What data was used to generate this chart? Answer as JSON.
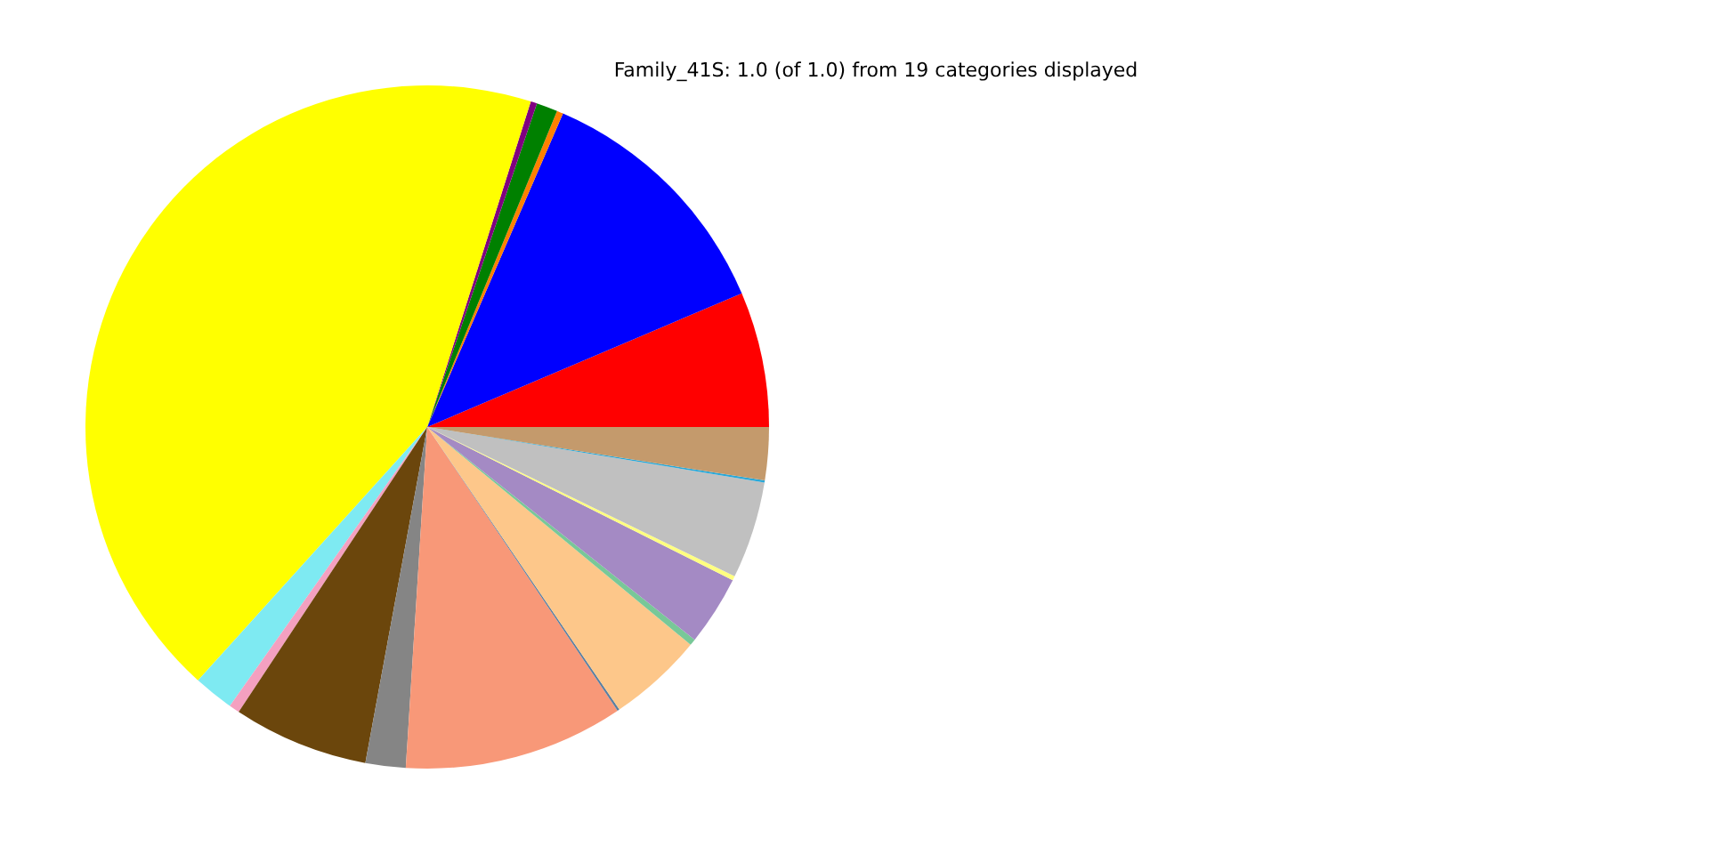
{
  "chart_data": {
    "type": "pie",
    "title": "Family_41S: 1.0 (of 1.0) from 19 categories displayed",
    "categories": [
      null,
      null,
      null,
      null,
      null,
      null,
      null,
      null,
      null,
      null,
      null,
      null,
      null,
      null,
      null,
      null,
      null,
      null,
      null
    ],
    "values": [
      6.4,
      12.1,
      0.3,
      1.0,
      0.3,
      43.2,
      1.9,
      0.5,
      6.4,
      1.9,
      10.4,
      0.1,
      4.5,
      0.3,
      3.3,
      0.2,
      4.6,
      0.1,
      2.5
    ],
    "colors": [
      "#ff0000",
      "#0000ff",
      "#ff8000",
      "#008000",
      "#800080",
      "#ffff00",
      "#7eeaf2",
      "#f4a0c0",
      "#6b460c",
      "#858585",
      "#f89878",
      "#5a7fa0",
      "#fdc78a",
      "#78c898",
      "#a48ac4",
      "#ffff80",
      "#c0c0c0",
      "#2aa8d8",
      "#c49a6c"
    ]
  }
}
